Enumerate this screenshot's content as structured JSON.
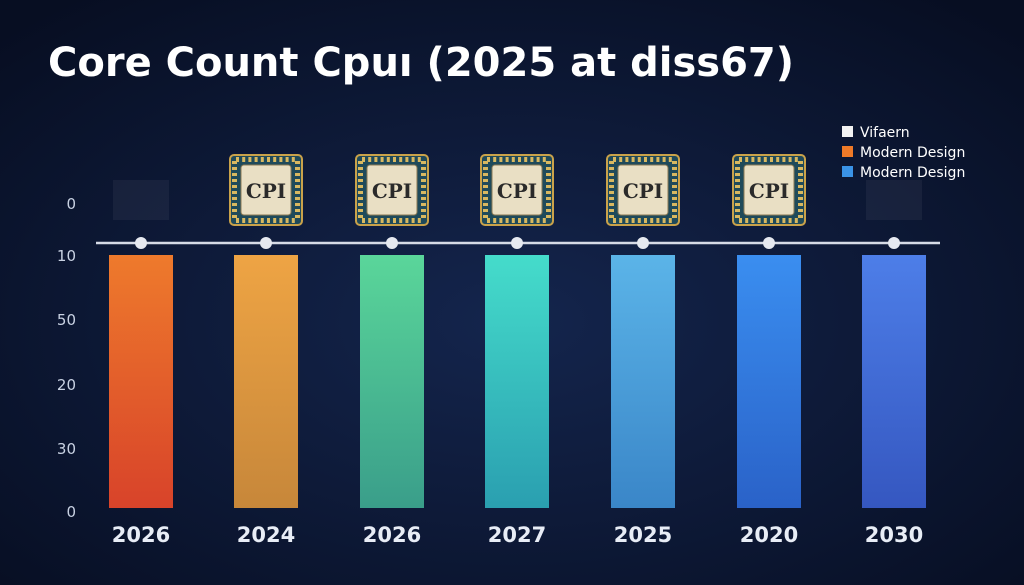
{
  "title": "Core Count Cpuı (2025 at diss67)",
  "axis_labels": [
    "0",
    "10",
    "50",
    "20",
    "30",
    "0"
  ],
  "categories": [
    "2026",
    "2024",
    "2026",
    "2027",
    "2025",
    "2020",
    "2030"
  ],
  "legend": [
    "Vifaern",
    "Modern Design",
    "Modern Design"
  ],
  "chip_label": "CPI"
}
